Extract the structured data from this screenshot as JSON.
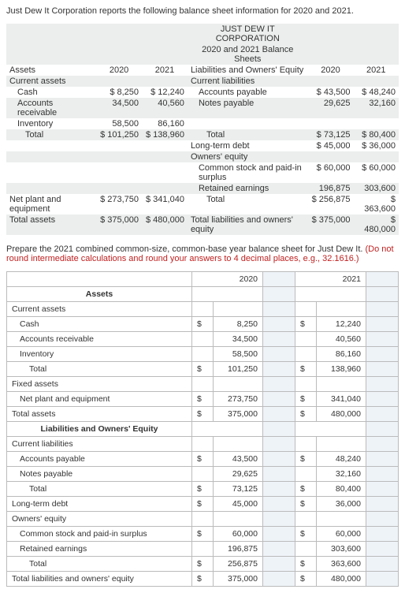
{
  "intro": "Just Dew It Corporation reports the following balance sheet information for 2020 and 2021.",
  "bs": {
    "corp": "JUST DEW IT CORPORATION",
    "subtitle": "2020 and 2021 Balance Sheets",
    "assets_hdr": "Assets",
    "y20": "2020",
    "y21": "2021",
    "liab_hdr": "Liabilities and Owners' Equity",
    "cur_assets": "Current assets",
    "cur_liab": "Current liabilities",
    "cash": "Cash",
    "cash20": "$ 8,250",
    "cash21": "$ 12,240",
    "ap": "Accounts payable",
    "ap20": "$ 43,500",
    "ap21": "$ 48,240",
    "ar": "Accounts receivable",
    "ar20": "34,500",
    "ar21": "40,560",
    "np": "Notes payable",
    "np20": "29,625",
    "np21": "32,160",
    "inv": "Inventory",
    "inv20": "58,500",
    "inv21": "86,160",
    "total": "Total",
    "ca_t20": "$ 101,250",
    "ca_t21": "$ 138,960",
    "cl_t20": "$ 73,125",
    "cl_t21": "$ 80,400",
    "ltd": "Long-term debt",
    "ltd20": "$ 45,000",
    "ltd21": "$ 36,000",
    "oe": "Owners' equity",
    "cs": "Common stock and paid-in surplus",
    "cs20": "$ 60,000",
    "cs21": "$ 60,000",
    "re": "Retained earnings",
    "re20": "196,875",
    "re21": "303,600",
    "npe": "Net plant and equipment",
    "npe20": "$ 273,750",
    "npe21": "$ 341,040",
    "oe_t20": "$ 256,875",
    "oe_t21": "363,600",
    "dollar": "$",
    "ta": "Total assets",
    "ta20": "$ 375,000",
    "ta21": "$ 480,000",
    "tloe": "Total liabilities and owners' equity",
    "tloe20": "$ 375,000",
    "tloe21": "480,000"
  },
  "instr": {
    "black": "Prepare the 2021 combined common-size, common-base year balance sheet for Just Dew It. ",
    "red": "(Do not round intermediate calculations and round your answers to 4 decimal places, e.g., 32.1616.)"
  },
  "ws": {
    "h_assets": "Assets",
    "h_2020": "2020",
    "h_2021": "2021",
    "rows": [
      {
        "lbl": "Current assets",
        "cls": "",
        "c20": "",
        "v20": "",
        "c21": "",
        "v21": ""
      },
      {
        "lbl": "Cash",
        "cls": "indent1",
        "c20": "$",
        "v20": "8,250",
        "c21": "$",
        "v21": "12,240"
      },
      {
        "lbl": "Accounts receivable",
        "cls": "indent1",
        "c20": "",
        "v20": "34,500",
        "c21": "",
        "v21": "40,560"
      },
      {
        "lbl": "Inventory",
        "cls": "indent1",
        "c20": "",
        "v20": "58,500",
        "c21": "",
        "v21": "86,160"
      },
      {
        "lbl": "Total",
        "cls": "indent2",
        "c20": "$",
        "v20": "101,250",
        "c21": "$",
        "v21": "138,960"
      },
      {
        "lbl": "Fixed assets",
        "cls": "",
        "c20": "",
        "v20": "",
        "c21": "",
        "v21": ""
      },
      {
        "lbl": "Net plant and equipment",
        "cls": "indent1",
        "c20": "$",
        "v20": "273,750",
        "c21": "$",
        "v21": "341,040"
      },
      {
        "lbl": "Total assets",
        "cls": "",
        "c20": "$",
        "v20": "375,000",
        "c21": "$",
        "v21": "480,000"
      },
      {
        "lbl": "Liabilities and Owners' Equity",
        "cls": "bold",
        "hdr": true
      },
      {
        "lbl": "Current liabilities",
        "cls": "",
        "c20": "",
        "v20": "",
        "c21": "",
        "v21": ""
      },
      {
        "lbl": "Accounts payable",
        "cls": "indent1",
        "c20": "$",
        "v20": "43,500",
        "c21": "$",
        "v21": "48,240"
      },
      {
        "lbl": "Notes payable",
        "cls": "indent1",
        "c20": "",
        "v20": "29,625",
        "c21": "",
        "v21": "32,160"
      },
      {
        "lbl": "Total",
        "cls": "indent2",
        "c20": "$",
        "v20": "73,125",
        "c21": "$",
        "v21": "80,400"
      },
      {
        "lbl": "Long-term debt",
        "cls": "",
        "c20": "$",
        "v20": "45,000",
        "c21": "$",
        "v21": "36,000"
      },
      {
        "lbl": "Owners' equity",
        "cls": "",
        "c20": "",
        "v20": "",
        "c21": "",
        "v21": ""
      },
      {
        "lbl": "Common stock and paid-in surplus",
        "cls": "indent1",
        "c20": "$",
        "v20": "60,000",
        "c21": "$",
        "v21": "60,000"
      },
      {
        "lbl": "Retained earnings",
        "cls": "indent1",
        "c20": "",
        "v20": "196,875",
        "c21": "",
        "v21": "303,600"
      },
      {
        "lbl": "Total",
        "cls": "indent2",
        "c20": "$",
        "v20": "256,875",
        "c21": "$",
        "v21": "363,600"
      },
      {
        "lbl": "Total liabilities and owners' equity",
        "cls": "",
        "c20": "$",
        "v20": "375,000",
        "c21": "$",
        "v21": "480,000"
      }
    ]
  }
}
